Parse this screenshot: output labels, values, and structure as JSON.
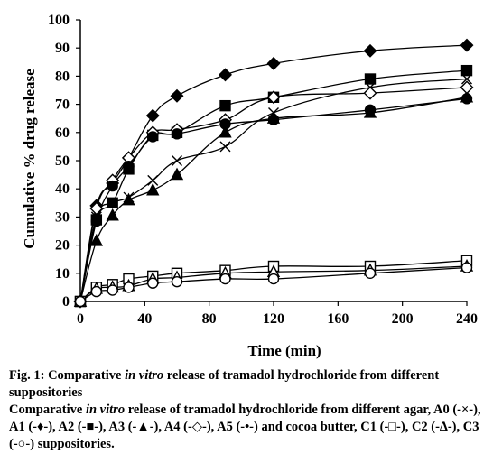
{
  "chart_data": {
    "type": "line",
    "xlabel": "Time (min)",
    "ylabel": "Cumulative % drug release",
    "xlim": [
      0,
      240
    ],
    "ylim": [
      0,
      100
    ],
    "xticks": [
      0,
      40,
      80,
      120,
      160,
      200,
      240
    ],
    "yticks": [
      0,
      10,
      20,
      30,
      40,
      50,
      60,
      70,
      80,
      90,
      100
    ],
    "grid": false,
    "legend": "none",
    "series": [
      {
        "name": "A0",
        "marker": "x",
        "fill": "none",
        "x": [
          0,
          10,
          20,
          30,
          45,
          60,
          90,
          120,
          180,
          240
        ],
        "y": [
          0,
          30,
          35,
          37,
          43,
          50,
          55,
          67,
          76,
          79
        ]
      },
      {
        "name": "A1",
        "marker": "diamond",
        "fill": "filled",
        "x": [
          0,
          10,
          20,
          30,
          45,
          60,
          90,
          120,
          180,
          240
        ],
        "y": [
          0,
          34,
          42,
          51,
          66,
          73,
          80.5,
          84.5,
          89,
          91
        ]
      },
      {
        "name": "A2",
        "marker": "square",
        "fill": "filled",
        "x": [
          0,
          10,
          20,
          30,
          45,
          60,
          90,
          120,
          180,
          240
        ],
        "y": [
          0,
          29,
          35,
          47,
          59,
          60,
          69.5,
          72.5,
          79,
          82
        ]
      },
      {
        "name": "A3",
        "marker": "triangle",
        "fill": "filled",
        "x": [
          0,
          10,
          20,
          30,
          45,
          60,
          90,
          120,
          180,
          240
        ],
        "y": [
          0,
          21.5,
          30.5,
          36,
          39.5,
          45,
          60,
          65,
          67,
          72.5
        ]
      },
      {
        "name": "A4",
        "marker": "diamond",
        "fill": "open",
        "x": [
          0,
          10,
          20,
          30,
          45,
          60,
          90,
          120,
          180,
          240
        ],
        "y": [
          0,
          33,
          43,
          51,
          60,
          61,
          64.5,
          72.5,
          74,
          76
        ]
      },
      {
        "name": "A5",
        "marker": "circle",
        "fill": "filled",
        "x": [
          0,
          10,
          20,
          30,
          45,
          60,
          90,
          120,
          180,
          240
        ],
        "y": [
          0,
          28.5,
          41,
          48,
          58.5,
          59.5,
          63,
          64.5,
          68,
          72
        ]
      },
      {
        "name": "C1",
        "marker": "square",
        "fill": "open",
        "x": [
          0,
          10,
          20,
          30,
          45,
          60,
          90,
          120,
          180,
          240
        ],
        "y": [
          0,
          5,
          6,
          8,
          9,
          10,
          11,
          12.5,
          12.5,
          14.5
        ]
      },
      {
        "name": "C2",
        "marker": "triangle",
        "fill": "open",
        "x": [
          0,
          10,
          20,
          30,
          45,
          60,
          90,
          120,
          180,
          240
        ],
        "y": [
          0,
          4.5,
          5,
          5.5,
          8,
          8.5,
          10,
          10.5,
          11,
          12.5
        ]
      },
      {
        "name": "C3",
        "marker": "circle",
        "fill": "open",
        "x": [
          0,
          10,
          20,
          30,
          45,
          60,
          90,
          120,
          180,
          240
        ],
        "y": [
          0,
          3.5,
          4,
          5,
          6.5,
          7,
          8,
          8,
          10,
          12
        ]
      }
    ]
  },
  "caption": {
    "fig_prefix": "Fig. 1: Comparative ",
    "fig_italic": "in vitro",
    "fig_suffix": " release of tramadol hydrochloride from different suppositories",
    "desc_prefix": "Comparative ",
    "desc_italic": "in vitro",
    "desc_suffix": " release of tramadol hydrochloride from different agar, A0 (-×-), A1 (-♦-), A2 (-■-), A3 (-▲-), A4 (-◇-), A5 (-•-) and cocoa butter, C1 (-□-), C2 (-∆-), C3 (-○-) suppositories."
  }
}
